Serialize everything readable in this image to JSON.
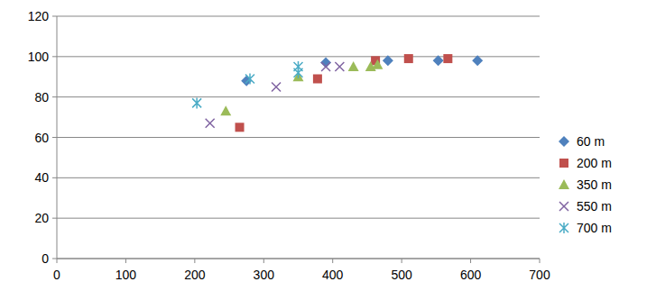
{
  "chart_data": {
    "type": "scatter",
    "xlim": [
      0,
      700
    ],
    "xticks": [
      0,
      100,
      200,
      300,
      400,
      500,
      600,
      700
    ],
    "ylim": [
      0,
      120
    ],
    "yticks": [
      0,
      20,
      40,
      60,
      80,
      100,
      120
    ],
    "grid": true,
    "legend": "right",
    "series": [
      {
        "name": "60 m",
        "color": "#4f81bd",
        "marker": "diamond",
        "x": [
          275,
          390,
          480,
          553,
          610
        ],
        "values": [
          88,
          97,
          98,
          98,
          98
        ]
      },
      {
        "name": "200 m",
        "color": "#c0504d",
        "marker": "square",
        "x": [
          265,
          378,
          462,
          510,
          567
        ],
        "values": [
          65,
          89,
          98,
          99,
          99
        ]
      },
      {
        "name": "350 m",
        "color": "#9bbb59",
        "marker": "triangle",
        "x": [
          245,
          350,
          430,
          455,
          465
        ],
        "values": [
          73,
          90,
          95,
          95,
          96
        ]
      },
      {
        "name": "550 m",
        "color": "#8064a2",
        "marker": "x",
        "x": [
          222,
          318,
          390,
          410
        ],
        "values": [
          67,
          85,
          95,
          95
        ]
      },
      {
        "name": "700 m",
        "color": "#4bacc6",
        "marker": "star",
        "x": [
          203,
          280,
          350,
          350
        ],
        "values": [
          77,
          89,
          95,
          92
        ]
      }
    ]
  }
}
